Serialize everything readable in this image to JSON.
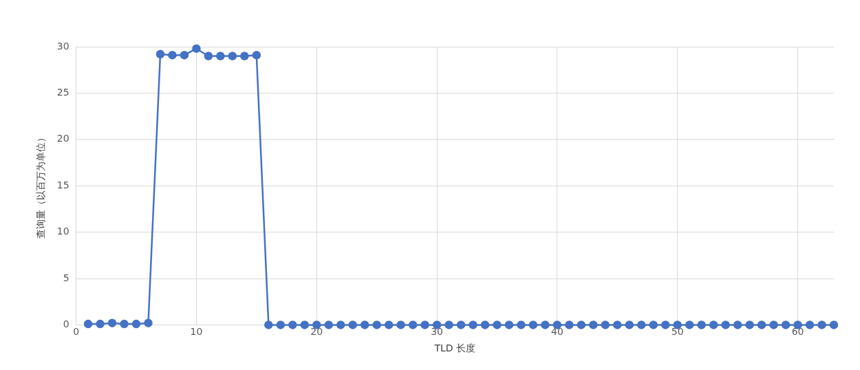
{
  "chart_data": {
    "type": "line",
    "xlabel": "TLD 长度",
    "ylabel": "查询量（以百万为单位）",
    "x": [
      1,
      2,
      3,
      4,
      5,
      6,
      7,
      8,
      9,
      10,
      11,
      12,
      13,
      14,
      15,
      16,
      17,
      18,
      19,
      20,
      21,
      22,
      23,
      24,
      25,
      26,
      27,
      28,
      29,
      30,
      31,
      32,
      33,
      34,
      35,
      36,
      37,
      38,
      39,
      40,
      41,
      42,
      43,
      44,
      45,
      46,
      47,
      48,
      49,
      50,
      51,
      52,
      53,
      54,
      55,
      56,
      57,
      58,
      59,
      60,
      61,
      62,
      63
    ],
    "series": [
      {
        "color": "#4472c4",
        "values": [
          0.1,
          0.1,
          0.2,
          0.1,
          0.1,
          0.2,
          29.2,
          29.1,
          29.1,
          29.8,
          29.0,
          29.0,
          29.0,
          29.0,
          29.1,
          0,
          0,
          0,
          0,
          0,
          0,
          0,
          0,
          0,
          0,
          0,
          0,
          0,
          0,
          0,
          0,
          0,
          0,
          0,
          0,
          0,
          0,
          0,
          0,
          0,
          0,
          0,
          0,
          0,
          0,
          0,
          0,
          0,
          0,
          0,
          0,
          0,
          0,
          0,
          0,
          0,
          0,
          0,
          0,
          0,
          0,
          0,
          0
        ]
      }
    ],
    "xlim": [
      0,
      63
    ],
    "xticks": [
      0,
      10,
      20,
      30,
      40,
      50,
      60
    ],
    "ylim": [
      0,
      30
    ],
    "yticks": [
      0,
      5,
      10,
      15,
      20,
      25,
      30
    ],
    "grid": true,
    "legend": false,
    "marker": "circle",
    "line_style": "solid"
  }
}
